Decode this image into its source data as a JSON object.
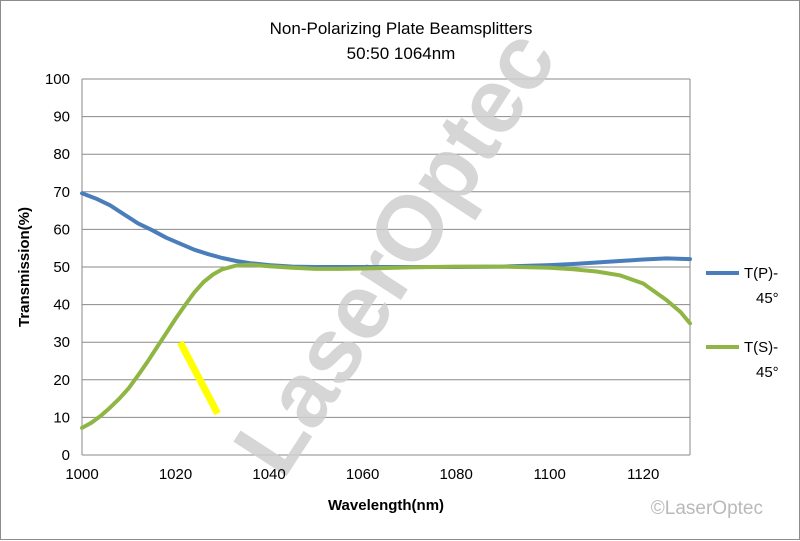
{
  "chart_data": {
    "type": "line",
    "title": "Non-Polarizing Plate Beamsplitters",
    "subtitle": "50:50  1064nm",
    "xlabel": "Wavelength(nm)",
    "ylabel": "Transmission(%)",
    "xlim": [
      1000,
      1130
    ],
    "ylim": [
      0,
      100
    ],
    "x_ticks": [
      "1000",
      "1020",
      "1040",
      "1060",
      "1080",
      "1100",
      "1120"
    ],
    "y_ticks": [
      "0",
      "10",
      "20",
      "30",
      "40",
      "50",
      "60",
      "70",
      "80",
      "90",
      "100"
    ],
    "grid": "horizontal",
    "legend_position": "right",
    "series": [
      {
        "name": "T(P)-45°",
        "color": "#4a7ebb",
        "points": [
          [
            1000,
            69.6
          ],
          [
            1003,
            68.2
          ],
          [
            1006,
            66.4
          ],
          [
            1009,
            64.0
          ],
          [
            1012,
            61.6
          ],
          [
            1015,
            59.8
          ],
          [
            1018,
            57.8
          ],
          [
            1021,
            56.2
          ],
          [
            1024,
            54.6
          ],
          [
            1027,
            53.4
          ],
          [
            1030,
            52.4
          ],
          [
            1033,
            51.6
          ],
          [
            1036,
            51.0
          ],
          [
            1040,
            50.5
          ],
          [
            1045,
            50.1
          ],
          [
            1050,
            50.0
          ],
          [
            1060,
            50.0
          ],
          [
            1070,
            50.0
          ],
          [
            1080,
            50.0
          ],
          [
            1090,
            50.1
          ],
          [
            1100,
            50.5
          ],
          [
            1105,
            50.8
          ],
          [
            1110,
            51.2
          ],
          [
            1115,
            51.6
          ],
          [
            1120,
            52.0
          ],
          [
            1125,
            52.3
          ],
          [
            1130,
            52.1
          ]
        ]
      },
      {
        "name": "T(S)-45°",
        "color": "#8fb645",
        "points": [
          [
            1000,
            7.2
          ],
          [
            1002,
            8.6
          ],
          [
            1004,
            10.4
          ],
          [
            1006,
            12.6
          ],
          [
            1008,
            15.0
          ],
          [
            1010,
            17.8
          ],
          [
            1012,
            21.2
          ],
          [
            1014,
            24.8
          ],
          [
            1016,
            28.6
          ],
          [
            1018,
            32.4
          ],
          [
            1020,
            36.2
          ],
          [
            1022,
            39.8
          ],
          [
            1024,
            43.2
          ],
          [
            1026,
            46.0
          ],
          [
            1028,
            48.0
          ],
          [
            1030,
            49.4
          ],
          [
            1033,
            50.4
          ],
          [
            1036,
            50.6
          ],
          [
            1040,
            50.2
          ],
          [
            1045,
            49.8
          ],
          [
            1050,
            49.5
          ],
          [
            1055,
            49.5
          ],
          [
            1060,
            49.6
          ],
          [
            1070,
            49.9
          ],
          [
            1080,
            50.1
          ],
          [
            1090,
            50.1
          ],
          [
            1100,
            49.8
          ],
          [
            1105,
            49.4
          ],
          [
            1110,
            48.8
          ],
          [
            1115,
            47.8
          ],
          [
            1120,
            45.6
          ],
          [
            1125,
            41.2
          ],
          [
            1128,
            38.0
          ],
          [
            1130,
            35.0
          ]
        ]
      }
    ],
    "highlight_stroke": {
      "color": "#ffff00",
      "points": [
        [
          1021,
          30
        ],
        [
          1029,
          11
        ]
      ]
    }
  },
  "watermark": {
    "text": "LaserOptec"
  },
  "copyright": {
    "text": "©LaserOptec"
  },
  "legend_lines": [
    [
      "T(P)-",
      "45°"
    ],
    [
      "T(S)-",
      "45°"
    ]
  ]
}
